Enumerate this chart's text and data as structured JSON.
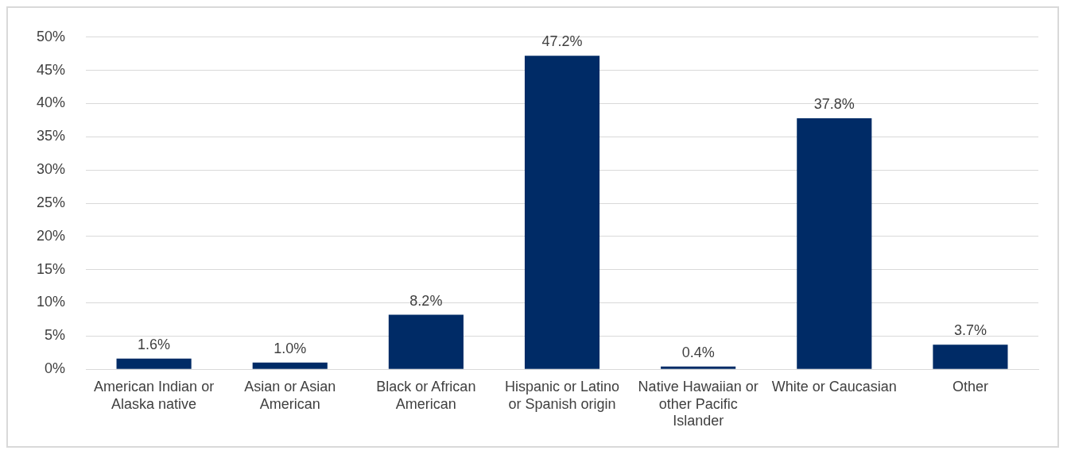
{
  "chart_data": {
    "type": "bar",
    "categories": [
      "American Indian or Alaska native",
      "Asian or Asian American",
      "Black or African American",
      "Hispanic or Latino or Spanish origin",
      "Native Hawaiian or other Pacific Islander",
      "White or Caucasian",
      "Other"
    ],
    "values": [
      1.6,
      1.0,
      8.2,
      47.2,
      0.4,
      37.8,
      3.7
    ],
    "value_labels": [
      "1.6%",
      "1.0%",
      "8.2%",
      "47.2%",
      "0.4%",
      "37.8%",
      "3.7%"
    ],
    "color": "#002b66",
    "ylim": [
      0,
      50
    ],
    "yticks": [
      {
        "value": 0,
        "label": "0%"
      },
      {
        "value": 5,
        "label": "5%"
      },
      {
        "value": 10,
        "label": "10%"
      },
      {
        "value": 15,
        "label": "15%"
      },
      {
        "value": 20,
        "label": "20%"
      },
      {
        "value": 25,
        "label": "25%"
      },
      {
        "value": 30,
        "label": "30%"
      },
      {
        "value": 35,
        "label": "35%"
      },
      {
        "value": 40,
        "label": "40%"
      },
      {
        "value": 45,
        "label": "45%"
      },
      {
        "value": 50,
        "label": "50%"
      }
    ],
    "grid": "y",
    "legend": false
  }
}
